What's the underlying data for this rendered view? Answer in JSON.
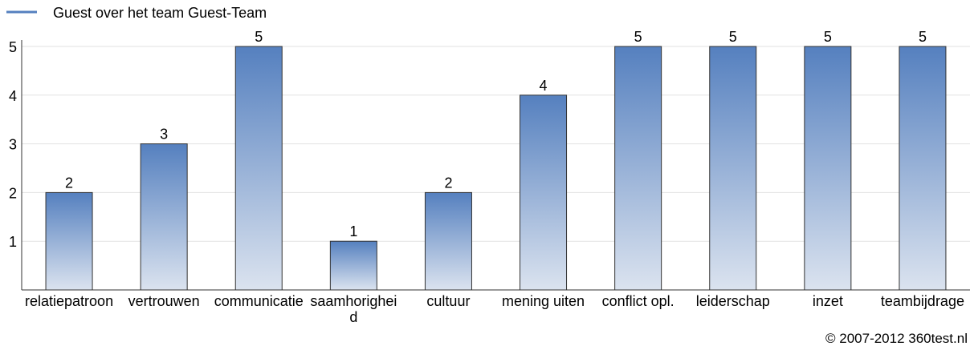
{
  "chart_data": {
    "type": "bar",
    "legend": "Guest over het team Guest-Team",
    "categories": [
      "relatiepatroon",
      "vertrouwen",
      "communicatie",
      "saamhorigheid",
      "cultuur",
      "mening uiten",
      "conflict opl.",
      "leiderschap",
      "inzet",
      "teambijdrage"
    ],
    "values": [
      2,
      3,
      5,
      1,
      2,
      4,
      5,
      5,
      5,
      5
    ],
    "color": "#5580bf",
    "ylim": [
      0,
      5
    ],
    "yticks": [
      1,
      2,
      3,
      4,
      5
    ],
    "grid": true,
    "footer": "© 2007-2012 360test.nl"
  }
}
